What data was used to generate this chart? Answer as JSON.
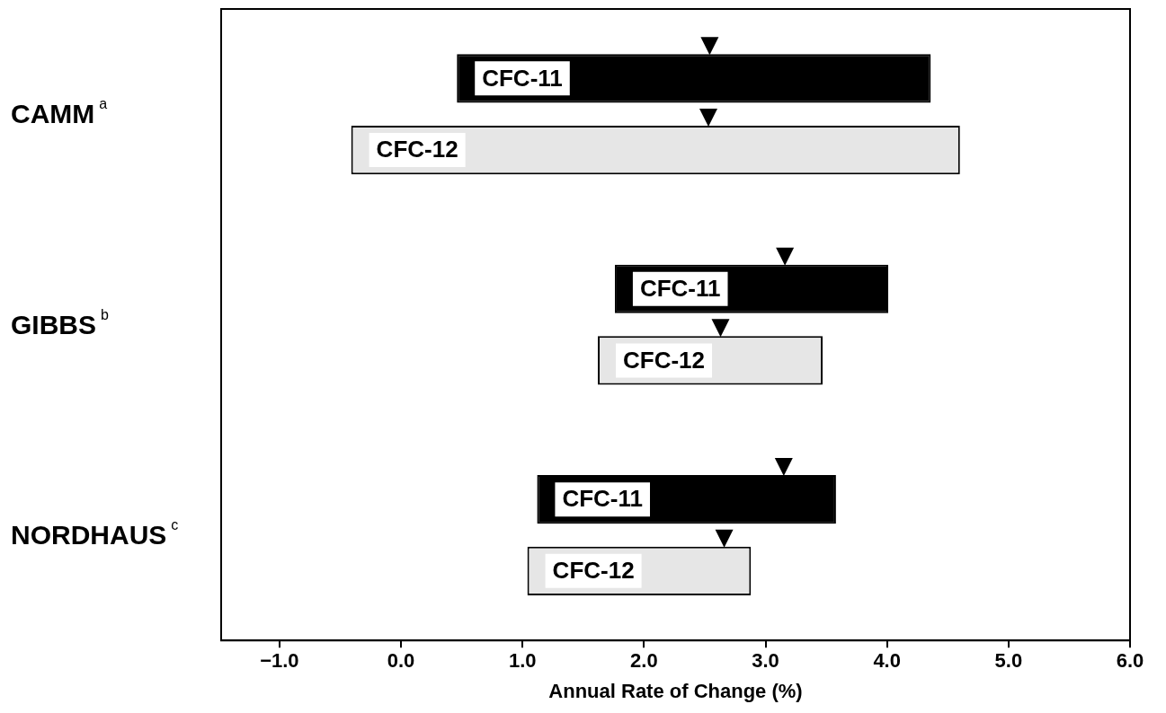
{
  "chart_data": {
    "type": "bar",
    "orientation": "horizontal",
    "xlabel": "Annual Rate of Change (%)",
    "categories": [
      "CAMM$^{a}$",
      "GIBBS$^{b}$",
      "NORDHAUS$^{c}$"
    ],
    "xlim": [
      -1.48,
      6.0
    ],
    "xticks": [
      {
        "value": -1,
        "label": "−1.0"
      },
      {
        "value": 0,
        "label": "0.0"
      },
      {
        "value": 1,
        "label": "1.0"
      },
      {
        "value": 2,
        "label": "2.0"
      },
      {
        "value": 3,
        "label": "3.0"
      },
      {
        "value": 4,
        "label": "4.0"
      },
      {
        "value": 5,
        "label": "5.0"
      },
      {
        "value": 6,
        "label": "6.0"
      }
    ],
    "grid": false,
    "legend": false,
    "series": [
      {
        "name": "CFC-11",
        "color": "#000000",
        "base": [
          0.46,
          1.76,
          1.12
        ],
        "values": [
          3.9,
          2.25,
          2.46
        ]
      },
      {
        "name": "CFC-12",
        "color": "#e6e6e6",
        "base": [
          -0.41,
          1.62,
          1.04
        ],
        "values": [
          5.01,
          1.85,
          1.84
        ]
      },
      {
        "type": "scatter",
        "marker": "triangle",
        "color": "#000000",
        "x": [
          "CAMM$^{a}$",
          "GIBBS$^{b}$",
          "NORDHAUS$^{c}$"
        ],
        "values": [
          2.54,
          3.16,
          3.15
        ]
      },
      {
        "type": "scatter",
        "marker": "triangle",
        "color": "#000000",
        "x": [
          "CAMM$^{a}$",
          "GIBBS$^{b}$",
          "NORDHAUS$^{c}$"
        ],
        "values": [
          2.53,
          2.63,
          2.66
        ]
      }
    ]
  }
}
